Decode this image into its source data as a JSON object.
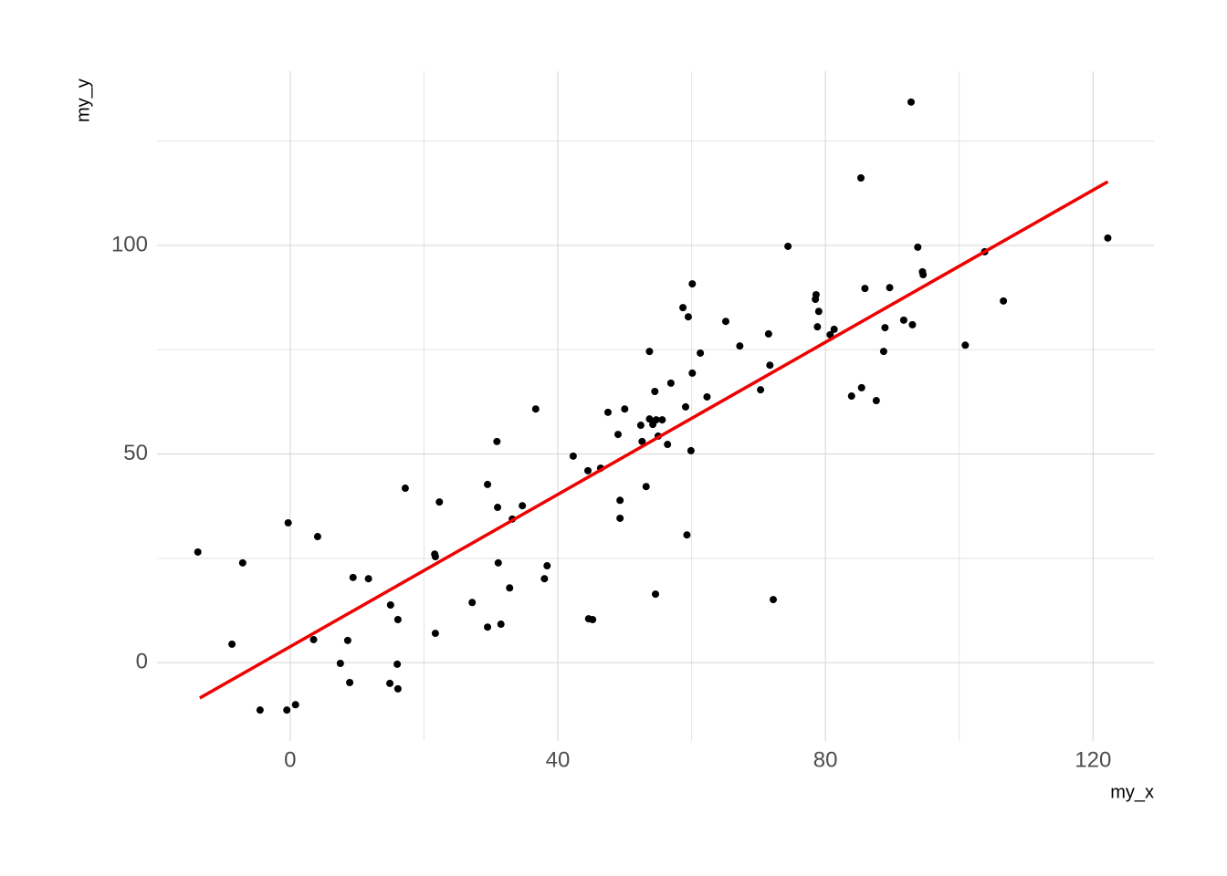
{
  "chart_data": {
    "type": "scatter",
    "x_label": "my_x",
    "y_label": "my_y",
    "xlim": [
      -19.9,
      129.1
    ],
    "ylim": [
      -18.8,
      141.8
    ],
    "xticks": [
      0,
      40,
      80,
      120
    ],
    "yticks": [
      0,
      50,
      100
    ],
    "grid": true,
    "series": [
      {
        "type": "scatter",
        "color": "#000000",
        "x": [
          -13.8,
          -8.7,
          -7.1,
          -4.5,
          -0.3,
          -0.5,
          0.8,
          3.5,
          4.1,
          7.5,
          8.6,
          8.9,
          9.4,
          11.7,
          15.0,
          14.9,
          16.0,
          16.1,
          16.1,
          17.2,
          21.6,
          21.7,
          21.7,
          22.3,
          27.2,
          29.5,
          29.5,
          30.9,
          31.0,
          31.1,
          31.5,
          32.8,
          33.2,
          34.7,
          36.7,
          38.0,
          38.4,
          42.3,
          44.5,
          44.6,
          45.2,
          46.4,
          47.5,
          49.0,
          49.3,
          49.3,
          50.0,
          52.4,
          52.6,
          53.2,
          53.7,
          53.7,
          54.2,
          54.5,
          54.6,
          54.7,
          55.0,
          55.6,
          56.4,
          56.9,
          58.7,
          59.1,
          59.3,
          59.5,
          59.9,
          60.1,
          60.1,
          61.3,
          62.3,
          65.1,
          67.2,
          70.3,
          71.5,
          71.7,
          72.2,
          74.4,
          78.5,
          78.6,
          78.8,
          79.0,
          80.7,
          81.3,
          83.9,
          85.3,
          85.4,
          85.9,
          87.6,
          88.7,
          88.9,
          89.6,
          91.7,
          92.8,
          93.0,
          93.8,
          94.5,
          94.6,
          100.9,
          103.8,
          106.6,
          122.2
        ],
        "values": [
          26.5,
          4.4,
          23.9,
          -11.4,
          33.5,
          -11.4,
          -10.1,
          5.5,
          30.2,
          -0.2,
          5.3,
          -4.8,
          20.4,
          20.1,
          13.8,
          -5.0,
          -0.4,
          -6.3,
          10.3,
          41.8,
          26.0,
          25.4,
          7.0,
          38.5,
          14.4,
          8.5,
          42.7,
          53.0,
          37.2,
          23.9,
          9.2,
          17.9,
          34.4,
          37.6,
          60.8,
          20.1,
          23.2,
          49.5,
          46.0,
          10.5,
          10.3,
          46.6,
          60.0,
          54.7,
          38.9,
          34.6,
          60.8,
          56.9,
          53.0,
          42.2,
          74.6,
          58.4,
          57.1,
          65.0,
          16.4,
          58.2,
          54.3,
          58.2,
          52.3,
          67.0,
          85.1,
          61.3,
          30.6,
          82.9,
          50.8,
          69.4,
          90.8,
          74.2,
          63.7,
          81.8,
          75.9,
          65.4,
          78.8,
          71.3,
          15.1,
          99.8,
          87.1,
          88.2,
          80.5,
          84.2,
          78.6,
          79.9,
          63.9,
          116.2,
          65.9,
          89.7,
          62.8,
          74.6,
          80.3,
          89.9,
          82.1,
          134.4,
          81.0,
          99.6,
          93.7,
          93.0,
          76.1,
          98.5,
          86.7,
          101.8
        ]
      },
      {
        "type": "line",
        "color": "#ee0000",
        "x": [
          -13.5,
          122.2
        ],
        "values": [
          -8.5,
          115.3
        ]
      }
    ]
  }
}
